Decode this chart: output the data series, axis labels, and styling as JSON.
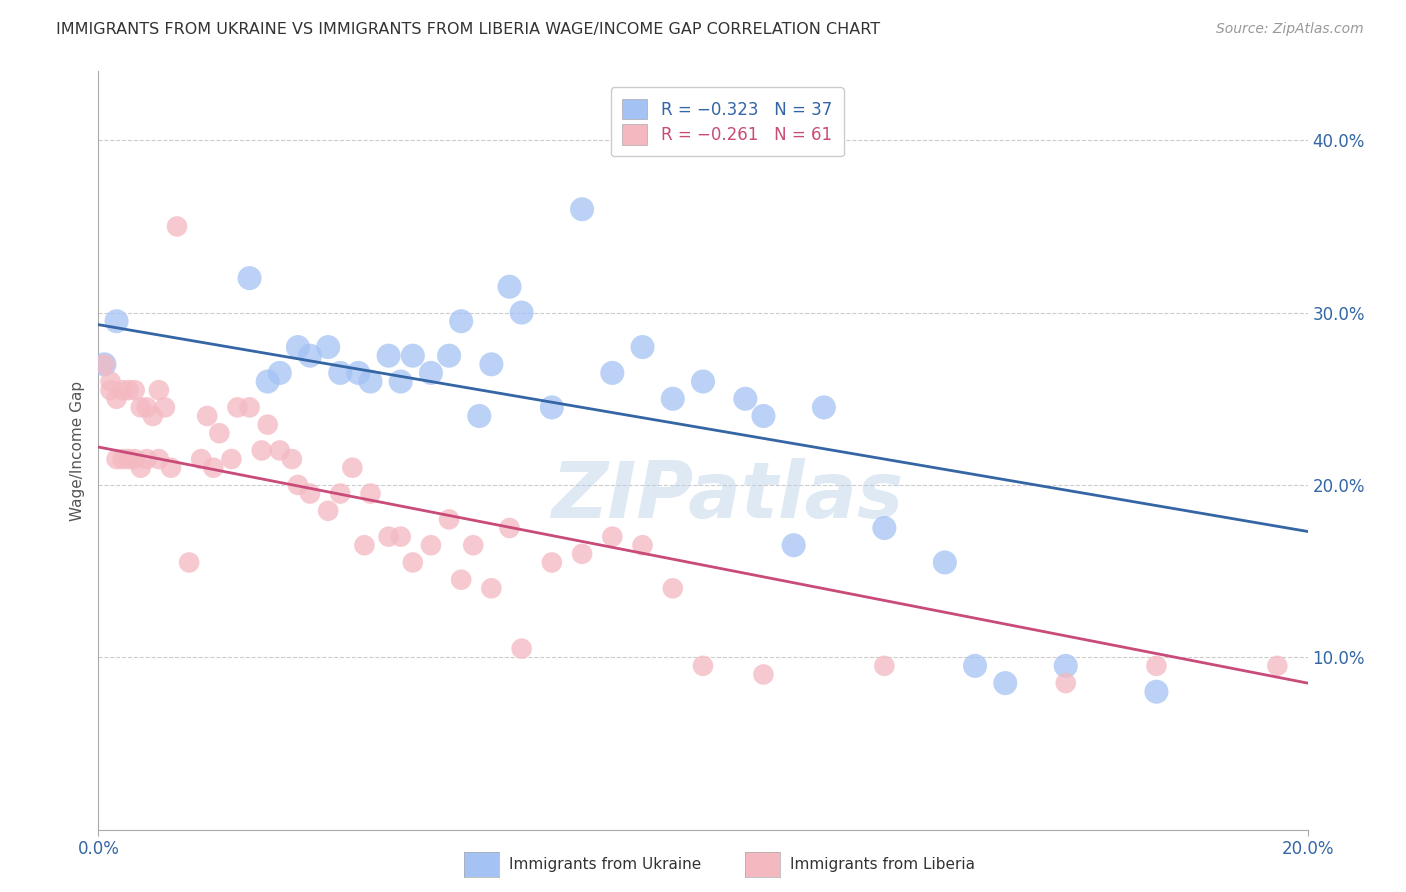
{
  "title": "IMMIGRANTS FROM UKRAINE VS IMMIGRANTS FROM LIBERIA WAGE/INCOME GAP CORRELATION CHART",
  "source": "Source: ZipAtlas.com",
  "ylabel": "Wage/Income Gap",
  "xlim": [
    0.0,
    0.2
  ],
  "ylim": [
    0.0,
    0.44
  ],
  "yticks": [
    0.0,
    0.1,
    0.2,
    0.3,
    0.4
  ],
  "xtick_positions": [
    0.0,
    0.2
  ],
  "xtick_labels": [
    "0.0%",
    "20.0%"
  ],
  "ytick_labels_right": [
    "",
    "10.0%",
    "20.0%",
    "30.0%",
    "40.0%"
  ],
  "ukraine_color": "#a4c2f4",
  "liberia_color": "#f4b8c1",
  "ukraine_line_color": "#3465a4",
  "liberia_line_color": "#c84b7a",
  "ukraine_R": -0.323,
  "ukraine_N": 37,
  "liberia_R": -0.261,
  "liberia_N": 61,
  "watermark": "ZIPatlas",
  "ukraine_line_y0": 0.293,
  "ukraine_line_y1": 0.173,
  "liberia_line_y0": 0.222,
  "liberia_line_y1": 0.085,
  "ukraine_x": [
    0.001,
    0.003,
    0.025,
    0.028,
    0.03,
    0.033,
    0.035,
    0.038,
    0.04,
    0.043,
    0.045,
    0.048,
    0.05,
    0.052,
    0.055,
    0.058,
    0.06,
    0.063,
    0.065,
    0.068,
    0.07,
    0.075,
    0.08,
    0.085,
    0.09,
    0.095,
    0.1,
    0.107,
    0.11,
    0.115,
    0.12,
    0.13,
    0.14,
    0.145,
    0.15,
    0.16,
    0.175
  ],
  "ukraine_y": [
    0.27,
    0.295,
    0.32,
    0.26,
    0.265,
    0.28,
    0.275,
    0.28,
    0.265,
    0.265,
    0.26,
    0.275,
    0.26,
    0.275,
    0.265,
    0.275,
    0.295,
    0.24,
    0.27,
    0.315,
    0.3,
    0.245,
    0.36,
    0.265,
    0.28,
    0.25,
    0.26,
    0.25,
    0.24,
    0.165,
    0.245,
    0.175,
    0.155,
    0.095,
    0.085,
    0.095,
    0.08
  ],
  "liberia_x": [
    0.001,
    0.002,
    0.002,
    0.003,
    0.003,
    0.004,
    0.004,
    0.005,
    0.005,
    0.006,
    0.006,
    0.007,
    0.007,
    0.008,
    0.008,
    0.009,
    0.01,
    0.01,
    0.011,
    0.012,
    0.013,
    0.015,
    0.017,
    0.018,
    0.019,
    0.02,
    0.022,
    0.023,
    0.025,
    0.027,
    0.028,
    0.03,
    0.032,
    0.033,
    0.035,
    0.038,
    0.04,
    0.042,
    0.044,
    0.045,
    0.048,
    0.05,
    0.052,
    0.055,
    0.058,
    0.06,
    0.062,
    0.065,
    0.068,
    0.07,
    0.075,
    0.08,
    0.085,
    0.09,
    0.095,
    0.1,
    0.11,
    0.13,
    0.16,
    0.175,
    0.195
  ],
  "liberia_y": [
    0.27,
    0.26,
    0.255,
    0.215,
    0.25,
    0.255,
    0.215,
    0.255,
    0.215,
    0.255,
    0.215,
    0.245,
    0.21,
    0.245,
    0.215,
    0.24,
    0.255,
    0.215,
    0.245,
    0.21,
    0.35,
    0.155,
    0.215,
    0.24,
    0.21,
    0.23,
    0.215,
    0.245,
    0.245,
    0.22,
    0.235,
    0.22,
    0.215,
    0.2,
    0.195,
    0.185,
    0.195,
    0.21,
    0.165,
    0.195,
    0.17,
    0.17,
    0.155,
    0.165,
    0.18,
    0.145,
    0.165,
    0.14,
    0.175,
    0.105,
    0.155,
    0.16,
    0.17,
    0.165,
    0.14,
    0.095,
    0.09,
    0.095,
    0.085,
    0.095,
    0.095
  ]
}
